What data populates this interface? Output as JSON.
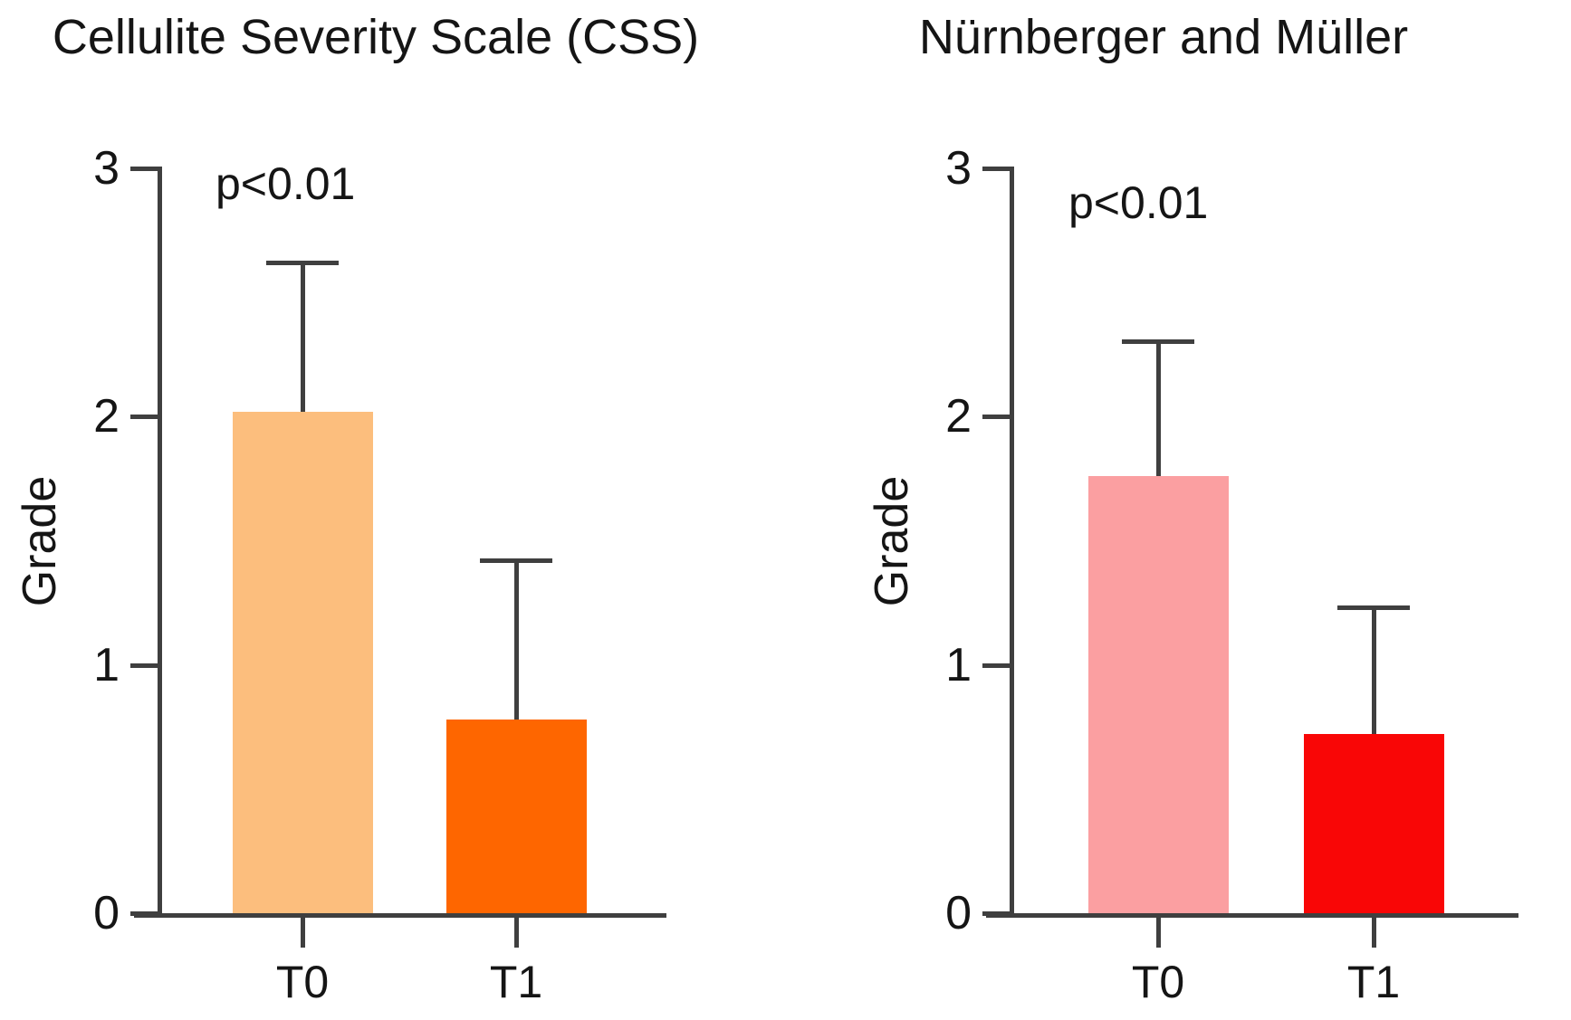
{
  "figure": {
    "background": "#ffffff",
    "kind": "two-panel bar figure"
  },
  "style": {
    "axis_color": "#3f3f3f",
    "text_color": "#151515"
  },
  "chart_data": [
    {
      "type": "bar",
      "title": "Cellulite Severity Scale (CSS)",
      "ylabel": "Grade",
      "xlabel": "",
      "annotation": "p<0.01",
      "categories": [
        "T0",
        "T1"
      ],
      "values": [
        2.02,
        0.78
      ],
      "errors_plus": [
        0.61,
        0.65
      ],
      "bar_colors": [
        "#FCBE7D",
        "#FE6600"
      ],
      "ylim": [
        0,
        3
      ],
      "yticks": [
        0,
        1,
        2,
        3
      ],
      "grid": false,
      "legend": "none"
    },
    {
      "type": "bar",
      "title": "Nürnberger and Müller",
      "ylabel": "Grade",
      "xlabel": "",
      "annotation": "p<0.01",
      "categories": [
        "T0",
        "T1"
      ],
      "values": [
        1.76,
        0.72
      ],
      "errors_plus": [
        0.55,
        0.52
      ],
      "bar_colors": [
        "#FB9FA1",
        "#F90606"
      ],
      "ylim": [
        0,
        3
      ],
      "yticks": [
        0,
        1,
        2,
        3
      ],
      "grid": false,
      "legend": "none"
    }
  ]
}
